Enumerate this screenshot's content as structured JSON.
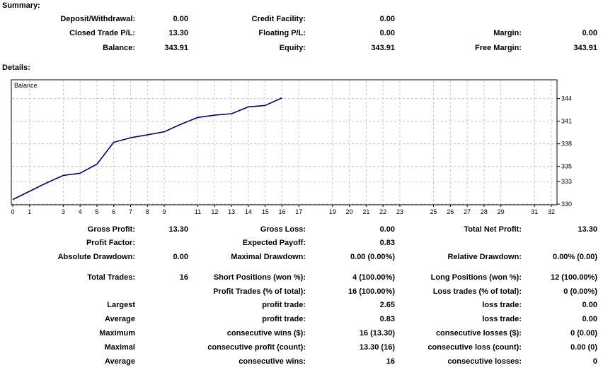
{
  "summary": {
    "title": "Summary:",
    "deposit_withdrawal": {
      "label": "Deposit/Withdrawal:",
      "value": "0.00"
    },
    "credit_facility": {
      "label": "Credit Facility:",
      "value": "0.00"
    },
    "closed_trade_pl": {
      "label": "Closed Trade P/L:",
      "value": "13.30"
    },
    "floating_pl": {
      "label": "Floating P/L:",
      "value": "0.00"
    },
    "margin": {
      "label": "Margin:",
      "value": "0.00"
    },
    "balance": {
      "label": "Balance:",
      "value": "343.91"
    },
    "equity": {
      "label": "Equity:",
      "value": "343.91"
    },
    "free_margin": {
      "label": "Free Margin:",
      "value": "343.91"
    }
  },
  "details": {
    "title": "Details:",
    "gross_profit": {
      "label": "Gross Profit:",
      "value": "13.30"
    },
    "gross_loss": {
      "label": "Gross Loss:",
      "value": "0.00"
    },
    "total_net_profit": {
      "label": "Total Net Profit:",
      "value": "13.30"
    },
    "profit_factor": {
      "label": "Profit Factor:",
      "value": ""
    },
    "expected_payoff": {
      "label": "Expected Payoff:",
      "value": "0.83"
    },
    "absolute_drawdown": {
      "label": "Absolute Drawdown:",
      "value": "0.00"
    },
    "maximal_drawdown": {
      "label": "Maximal Drawdown:",
      "value": "0.00 (0.00%)"
    },
    "relative_drawdown": {
      "label": "Relative Drawdown:",
      "value": "0.00% (0.00)"
    },
    "total_trades": {
      "label": "Total Trades:",
      "value": "16"
    },
    "short_positions": {
      "label": "Short Positions (won %):",
      "value": "4 (100.00%)"
    },
    "long_positions": {
      "label": "Long Positions (won %):",
      "value": "12 (100.00%)"
    },
    "profit_trades": {
      "label": "Profit Trades (% of total):",
      "value": "16 (100.00%)"
    },
    "loss_trades": {
      "label": "Loss trades (% of total):",
      "value": "0 (0.00%)"
    },
    "largest": {
      "label": "Largest",
      "profit_label": "profit trade:",
      "profit_value": "2.65",
      "loss_label": "loss trade:",
      "loss_value": "0.00"
    },
    "average": {
      "label": "Average",
      "profit_label": "profit trade:",
      "profit_value": "0.83",
      "loss_label": "loss trade:",
      "loss_value": "0.00"
    },
    "maximum": {
      "label": "Maximum",
      "wins_label": "consecutive wins ($):",
      "wins_value": "16 (13.30)",
      "losses_label": "consecutive losses ($):",
      "losses_value": "0 (0.00)"
    },
    "maximal": {
      "label": "Maximal",
      "profit_label": "consecutive profit (count):",
      "profit_value": "13.30 (16)",
      "loss_label": "consecutive loss (count):",
      "loss_value": "0.00 (0)"
    },
    "average_consecutive": {
      "label": "Average",
      "wins_label": "consecutive wins:",
      "wins_value": "16",
      "losses_label": "consecutive losses:",
      "losses_value": "0"
    }
  },
  "chart_data": {
    "type": "line",
    "title": "Balance",
    "xlabel": "",
    "ylabel": "",
    "xlim": [
      0,
      32
    ],
    "ylim": [
      330,
      345
    ],
    "x_ticks": [
      0,
      1,
      3,
      4,
      5,
      6,
      7,
      8,
      9,
      11,
      12,
      13,
      14,
      15,
      16,
      17,
      19,
      20,
      21,
      22,
      23,
      25,
      26,
      27,
      28,
      29,
      31,
      32
    ],
    "y_ticks": [
      330,
      333,
      335,
      338,
      341,
      344
    ],
    "grid": true,
    "line_color": "#000080",
    "series": [
      {
        "x": [
          0,
          1,
          2,
          3,
          4,
          5,
          6,
          7,
          8,
          9,
          10,
          11,
          12,
          13,
          14,
          15,
          16
        ],
        "y": [
          330.6,
          331.7,
          332.8,
          333.8,
          334.1,
          335.3,
          338.2,
          338.8,
          339.2,
          339.6,
          340.6,
          341.5,
          341.8,
          342.0,
          342.9,
          343.1,
          344.1
        ]
      }
    ]
  }
}
